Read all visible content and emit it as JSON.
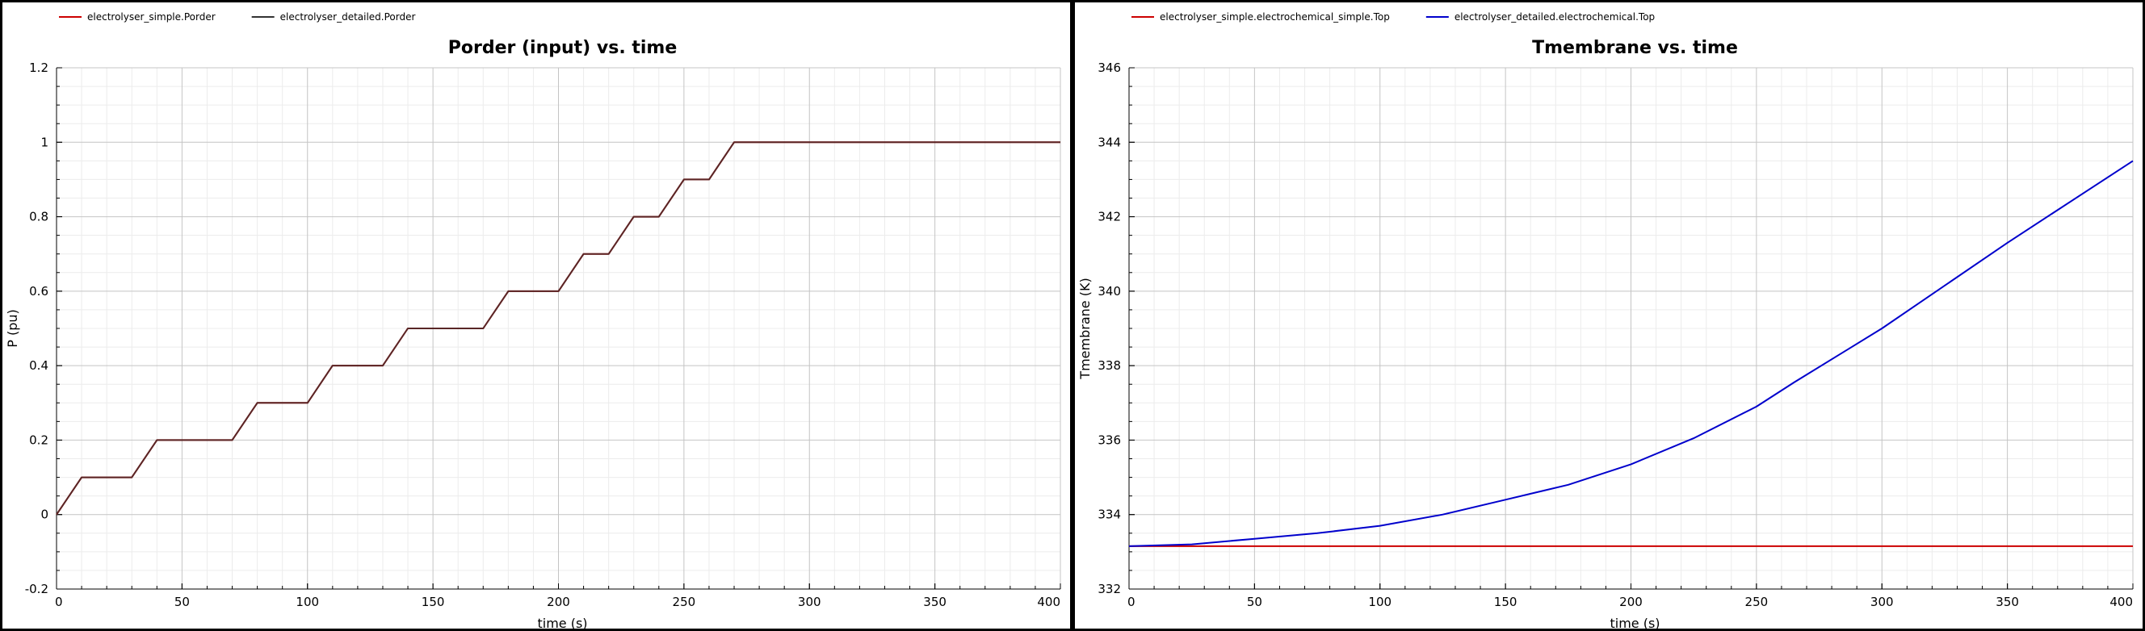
{
  "chart_data": [
    {
      "type": "line",
      "title": "Porder (input) vs. time",
      "xlabel": "time (s)",
      "ylabel": "P (pu)",
      "xlim": [
        0,
        400
      ],
      "ylim": [
        -0.2,
        1.2
      ],
      "xticks": [
        "0",
        "50",
        "100",
        "150",
        "200",
        "250",
        "300",
        "350",
        "400"
      ],
      "yticks": [
        "-0.2",
        "0",
        "0.2",
        "0.4",
        "0.6",
        "0.8",
        "1",
        "1.2"
      ],
      "grid": true,
      "legend": "top-left",
      "series": [
        {
          "name": "electrolyser_simple.Porder",
          "color": "#cc0000",
          "x": [
            0,
            10,
            30,
            40,
            70,
            80,
            100,
            110,
            130,
            140,
            170,
            180,
            200,
            210,
            220,
            230,
            240,
            250,
            260,
            270,
            400
          ],
          "y": [
            0,
            0.1,
            0.1,
            0.2,
            0.2,
            0.3,
            0.3,
            0.4,
            0.4,
            0.5,
            0.5,
            0.6,
            0.6,
            0.7,
            0.7,
            0.8,
            0.8,
            0.9,
            0.9,
            1.0,
            1.0
          ]
        },
        {
          "name": "electrolyser_detailed.Porder",
          "color": "#333333",
          "x": [
            0,
            10,
            30,
            40,
            70,
            80,
            100,
            110,
            130,
            140,
            170,
            180,
            200,
            210,
            220,
            230,
            240,
            250,
            260,
            270,
            400
          ],
          "y": [
            0,
            0.1,
            0.1,
            0.2,
            0.2,
            0.3,
            0.3,
            0.4,
            0.4,
            0.5,
            0.5,
            0.6,
            0.6,
            0.7,
            0.7,
            0.8,
            0.8,
            0.9,
            0.9,
            1.0,
            1.0
          ]
        }
      ]
    },
    {
      "type": "line",
      "title": "Tmembrane vs. time",
      "xlabel": "time (s)",
      "ylabel": "Tmembrane (K)",
      "xlim": [
        0,
        400
      ],
      "ylim": [
        332,
        346
      ],
      "xticks": [
        "0",
        "50",
        "100",
        "150",
        "200",
        "250",
        "300",
        "350",
        "400"
      ],
      "yticks": [
        "332",
        "334",
        "336",
        "338",
        "340",
        "342",
        "344",
        "346"
      ],
      "grid": true,
      "legend": "top-left",
      "series": [
        {
          "name": "electrolyser_simple.electrochemical_simple.Top",
          "color": "#cc0000",
          "x": [
            0,
            400
          ],
          "y": [
            333.15,
            333.15
          ]
        },
        {
          "name": "electrolyser_detailed.electrochemical.Top",
          "color": "#0000cc",
          "x": [
            0,
            25,
            50,
            75,
            100,
            125,
            150,
            175,
            200,
            225,
            250,
            265,
            300,
            350,
            400
          ],
          "y": [
            333.15,
            333.2,
            333.35,
            333.5,
            333.7,
            334.0,
            334.4,
            334.8,
            335.35,
            336.05,
            336.9,
            337.55,
            339.0,
            341.3,
            343.5
          ]
        }
      ]
    }
  ]
}
